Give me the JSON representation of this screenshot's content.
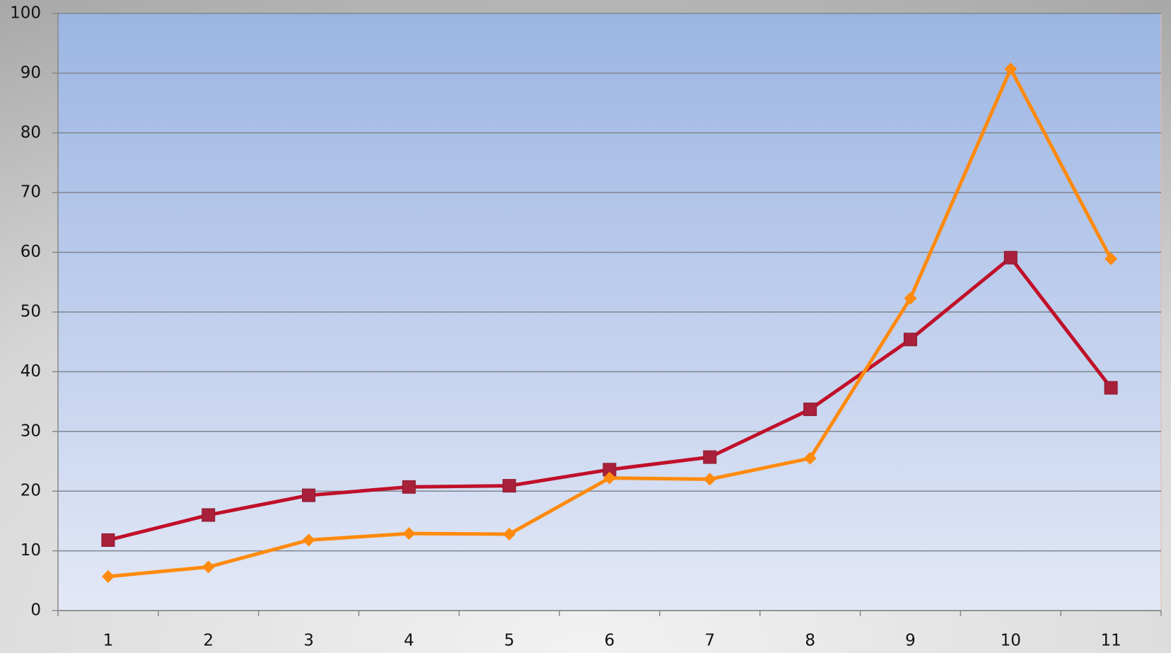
{
  "chart_data": {
    "type": "line",
    "categories": [
      "1",
      "2",
      "3",
      "4",
      "5",
      "6",
      "7",
      "8",
      "9",
      "10",
      "11"
    ],
    "series": [
      {
        "color": "#c0102a",
        "marker": "square",
        "values": [
          11.8,
          16,
          19.3,
          20.7,
          20.9,
          23.6,
          25.7,
          33.7,
          45.4,
          59.1,
          37.3
        ]
      },
      {
        "color": "#ff8a0d",
        "marker": "diamond",
        "values": [
          5.7,
          7.3,
          11.8,
          12.9,
          12.8,
          22.2,
          22,
          25.5,
          52.3,
          90.7,
          58.9
        ]
      }
    ],
    "ylim": [
      0,
      100
    ],
    "yticks": [
      0,
      10,
      20,
      30,
      40,
      50,
      60,
      70,
      80,
      90,
      100
    ],
    "grid": true
  }
}
